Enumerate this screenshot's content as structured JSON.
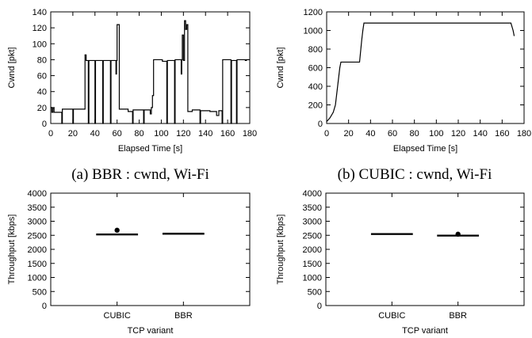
{
  "captions": {
    "a": "(a) BBR : cwnd, Wi-Fi",
    "b": "(b) CUBIC : cwnd, Wi-Fi"
  },
  "chart_data": [
    {
      "id": "a",
      "type": "line",
      "xlabel": "Elapsed Time [s]",
      "ylabel": "Cwnd [pkt]",
      "xlim": [
        0,
        180
      ],
      "ylim": [
        0,
        140
      ],
      "xticks": [
        0,
        20,
        40,
        60,
        80,
        100,
        120,
        140,
        160,
        180
      ],
      "yticks": [
        0,
        20,
        40,
        60,
        80,
        100,
        120,
        140
      ],
      "grid": false,
      "series": [
        {
          "points": [
            [
              0,
              20
            ],
            [
              1,
              20
            ],
            [
              1,
              14
            ],
            [
              2,
              14
            ],
            [
              2,
              19
            ],
            [
              3,
              19
            ],
            [
              3,
              14
            ],
            [
              10,
              14
            ],
            [
              10,
              0
            ],
            [
              10.5,
              0
            ],
            [
              10.5,
              18
            ],
            [
              20,
              18
            ],
            [
              20,
              0
            ],
            [
              20.5,
              0
            ],
            [
              20.5,
              18
            ],
            [
              31,
              18
            ],
            [
              31,
              86
            ],
            [
              32,
              86
            ],
            [
              32,
              79
            ],
            [
              34,
              79
            ],
            [
              34,
              0
            ],
            [
              34.5,
              0
            ],
            [
              34.5,
              79
            ],
            [
              40,
              79
            ],
            [
              40,
              0
            ],
            [
              40.5,
              0
            ],
            [
              40.5,
              79
            ],
            [
              47,
              79
            ],
            [
              47,
              0
            ],
            [
              47.5,
              0
            ],
            [
              47.5,
              79
            ],
            [
              54,
              79
            ],
            [
              54,
              0
            ],
            [
              54.5,
              0
            ],
            [
              54.5,
              79
            ],
            [
              59,
              79
            ],
            [
              59,
              62
            ],
            [
              59.5,
              62
            ],
            [
              59.5,
              79
            ],
            [
              60,
              79
            ],
            [
              60,
              124
            ],
            [
              62,
              124
            ],
            [
              62,
              18
            ],
            [
              70,
              18
            ],
            [
              70,
              15
            ],
            [
              74,
              15
            ],
            [
              74,
              0
            ],
            [
              74.5,
              0
            ],
            [
              74.5,
              17
            ],
            [
              84,
              17
            ],
            [
              84,
              0
            ],
            [
              84.5,
              0
            ],
            [
              84.5,
              17
            ],
            [
              90,
              17
            ],
            [
              90,
              12
            ],
            [
              91,
              12
            ],
            [
              91,
              20
            ],
            [
              92,
              20
            ],
            [
              92,
              35
            ],
            [
              93,
              35
            ],
            [
              93,
              80
            ],
            [
              101,
              80
            ],
            [
              101,
              78
            ],
            [
              105,
              78
            ],
            [
              105,
              0
            ],
            [
              105.5,
              0
            ],
            [
              105.5,
              79
            ],
            [
              112,
              79
            ],
            [
              112,
              0
            ],
            [
              112.5,
              0
            ],
            [
              112.5,
              80
            ],
            [
              118,
              80
            ],
            [
              118,
              62
            ],
            [
              118.5,
              62
            ],
            [
              118.5,
              80
            ],
            [
              119,
              80
            ],
            [
              119,
              111
            ],
            [
              120,
              111
            ],
            [
              120,
              79
            ],
            [
              121,
              79
            ],
            [
              121,
              129
            ],
            [
              122,
              129
            ],
            [
              122,
              118
            ],
            [
              123,
              118
            ],
            [
              123,
              124
            ],
            [
              124,
              124
            ],
            [
              124,
              15
            ],
            [
              128,
              15
            ],
            [
              128,
              17
            ],
            [
              135,
              17
            ],
            [
              135,
              0
            ],
            [
              135.5,
              0
            ],
            [
              135.5,
              16
            ],
            [
              144,
              16
            ],
            [
              144,
              15
            ],
            [
              150,
              15
            ],
            [
              150,
              10
            ],
            [
              152,
              10
            ],
            [
              152,
              16
            ],
            [
              155,
              16
            ],
            [
              155,
              0
            ],
            [
              155.5,
              0
            ],
            [
              155.5,
              80
            ],
            [
              163,
              80
            ],
            [
              163,
              0
            ],
            [
              163.5,
              0
            ],
            [
              163.5,
              79
            ],
            [
              168,
              79
            ],
            [
              168,
              0
            ],
            [
              168.5,
              0
            ],
            [
              168.5,
              80
            ],
            [
              176,
              80
            ],
            [
              176,
              79
            ],
            [
              177,
              79
            ],
            [
              177,
              80
            ],
            [
              180,
              80
            ]
          ]
        }
      ]
    },
    {
      "id": "b",
      "type": "line",
      "xlabel": "Elapsed Time [s]",
      "ylabel": "Cwnd [pkt]",
      "xlim": [
        0,
        180
      ],
      "ylim": [
        0,
        1200
      ],
      "xticks": [
        0,
        20,
        40,
        60,
        80,
        100,
        120,
        140,
        160,
        180
      ],
      "yticks": [
        0,
        200,
        400,
        600,
        800,
        1000,
        1200
      ],
      "grid": false,
      "series": [
        {
          "points": [
            [
              0,
              20
            ],
            [
              3,
              60
            ],
            [
              6,
              120
            ],
            [
              8,
              200
            ],
            [
              9,
              300
            ],
            [
              10,
              400
            ],
            [
              11,
              500
            ],
            [
              12,
              600
            ],
            [
              13,
              660
            ],
            [
              30,
              660
            ],
            [
              31,
              780
            ],
            [
              32,
              900
            ],
            [
              33,
              1000
            ],
            [
              34,
              1080
            ],
            [
              168,
              1080
            ],
            [
              170,
              1000
            ],
            [
              171,
              940
            ]
          ]
        }
      ]
    },
    {
      "id": "c",
      "type": "box",
      "xlabel": "TCP variant",
      "ylabel": "Throughput [kbps]",
      "categories": [
        "CUBIC",
        "BBR"
      ],
      "ylim": [
        0,
        4000
      ],
      "yticks": [
        0,
        500,
        1000,
        1500,
        2000,
        2500,
        3000,
        3500,
        4000
      ],
      "grid": false,
      "boxes": [
        {
          "category": "CUBIC",
          "q1": 2530,
          "median": 2540,
          "q3": 2550,
          "outliers": [
            2680
          ]
        },
        {
          "category": "BBR",
          "q1": 2565,
          "median": 2570,
          "q3": 2575,
          "outliers": []
        }
      ]
    },
    {
      "id": "d",
      "type": "box",
      "xlabel": "TCP variant",
      "ylabel": "Throughput [kbps]",
      "categories": [
        "CUBIC",
        "BBR"
      ],
      "ylim": [
        0,
        4000
      ],
      "yticks": [
        0,
        500,
        1000,
        1500,
        2000,
        2500,
        3000,
        3500,
        4000
      ],
      "grid": false,
      "boxes": [
        {
          "category": "CUBIC",
          "q1": 2545,
          "median": 2555,
          "q3": 2565,
          "outliers": []
        },
        {
          "category": "BBR",
          "q1": 2490,
          "median": 2500,
          "q3": 2510,
          "outliers": [
            2540
          ]
        }
      ]
    }
  ]
}
